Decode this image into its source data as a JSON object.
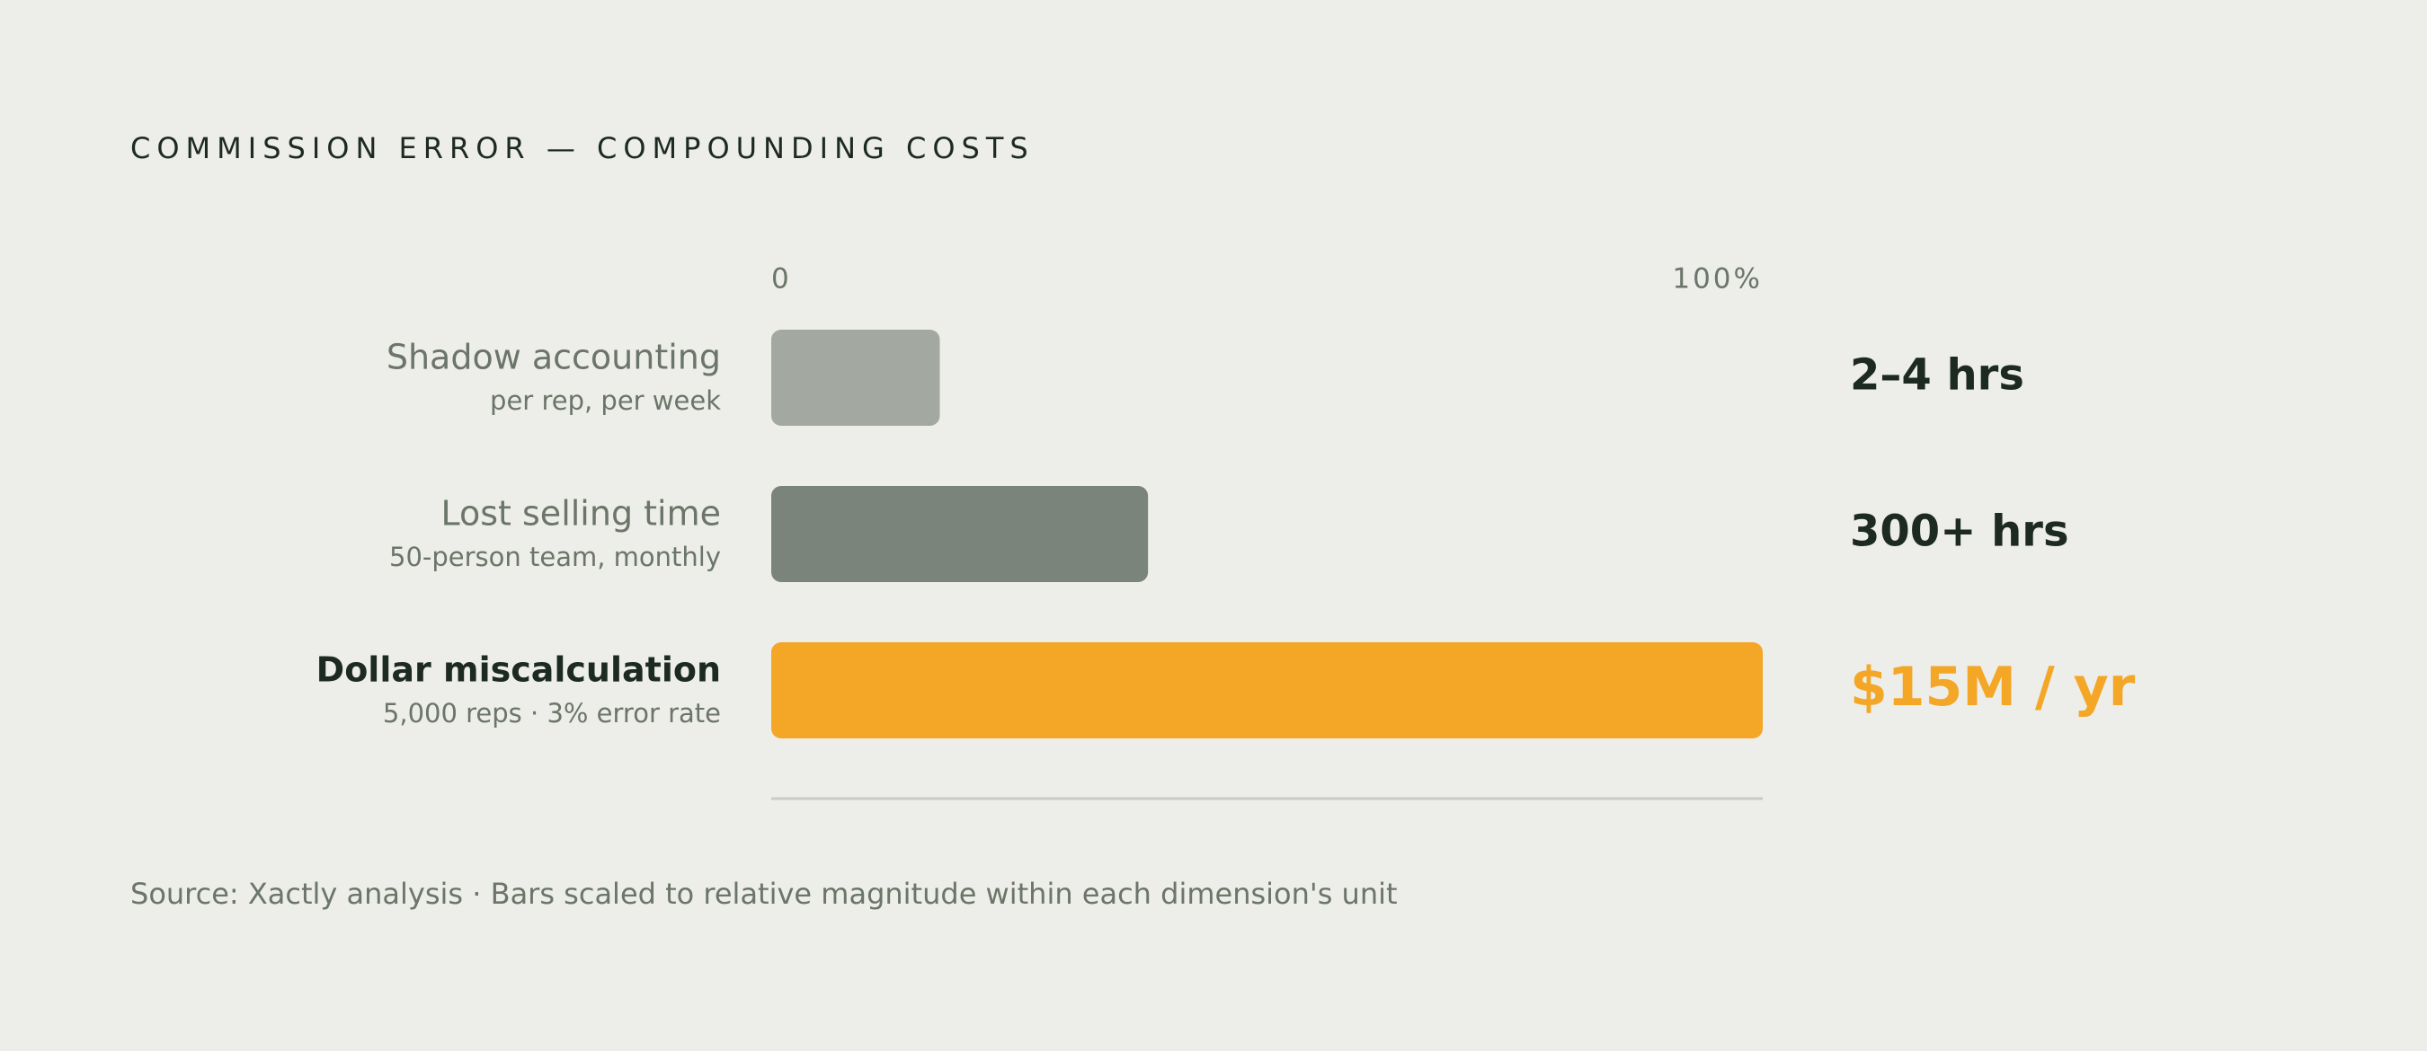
{
  "chart_data": {
    "type": "bar",
    "orientation": "horizontal",
    "title": "COMMISSION ERROR — COMPOUNDING COSTS",
    "categories": [
      "Shadow accounting",
      "Lost selling time",
      "Dollar miscalculation"
    ],
    "subtitles": [
      "per rep, per week",
      "50-person team, monthly",
      "5,000 reps · 3% error rate"
    ],
    "values": [
      17,
      38,
      100
    ],
    "colors": [
      "#a3a9a1",
      "#7b847a",
      "#f4a626"
    ],
    "magnitudes": [
      "2–4 hrs",
      "300+ hrs",
      "$15M / yr"
    ],
    "highlight": 2,
    "xlim": [
      0,
      100
    ],
    "xticks": [
      0,
      {
        "value": 100,
        "label": "100%"
      }
    ],
    "source": "Source: Xactly analysis · Bars scaled to relative magnitude within each dimension's unit"
  }
}
